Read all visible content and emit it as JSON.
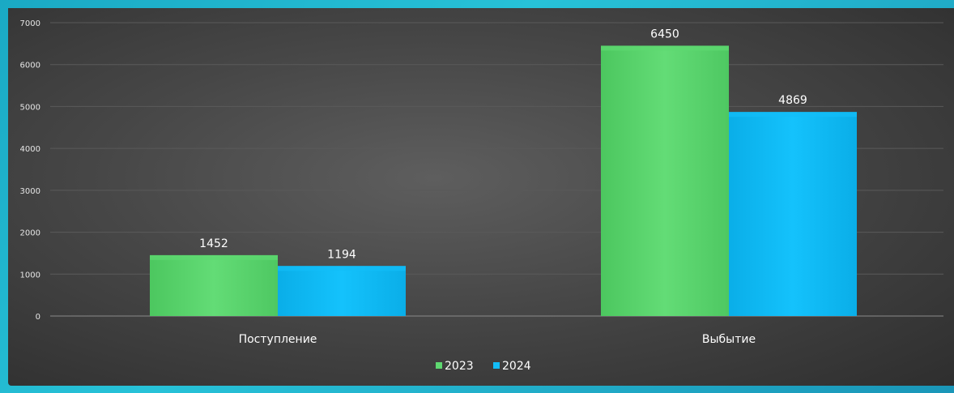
{
  "colors": {
    "series_2023": "#5ed870",
    "series_2024": "#12bdf8"
  },
  "chart_data": {
    "type": "bar",
    "categories": [
      "Поступление",
      "Выбытие"
    ],
    "series": [
      {
        "name": "2023",
        "values": [
          1452,
          6450
        ]
      },
      {
        "name": "2024",
        "values": [
          1194,
          4869
        ]
      }
    ],
    "ylim": [
      0,
      7000
    ],
    "yticks": [
      0,
      1000,
      2000,
      3000,
      4000,
      5000,
      6000,
      7000
    ],
    "grid": true,
    "legend": "bottom"
  }
}
